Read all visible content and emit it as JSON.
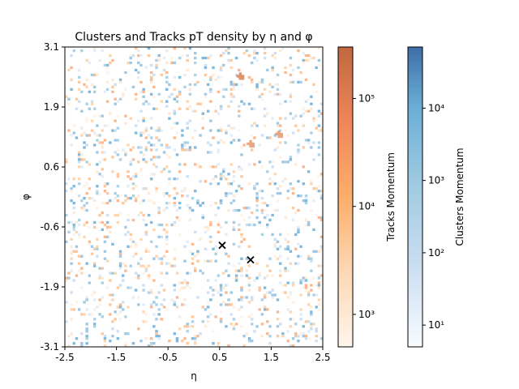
{
  "chart_data": {
    "type": "heatmap",
    "title": "Clusters and Tracks pT density by η and φ",
    "xlabel": "η",
    "ylabel": "φ",
    "xlim": [
      -2.5,
      2.5
    ],
    "ylim": [
      -3.1,
      3.1
    ],
    "xticks": [
      "-2.5",
      "-1.5",
      "-0.5",
      "0.5",
      "1.5",
      "2.5"
    ],
    "yticks": [
      "-3.1",
      "-1.9",
      "-0.6",
      "0.6",
      "1.9",
      "3.1"
    ],
    "grid": false,
    "colorbars": [
      {
        "name": "Tracks Momentum",
        "colormap": "Oranges",
        "scale": "log",
        "range": [
          500,
          300000
        ],
        "tick_labels": [
          "10³",
          "10⁴",
          "10⁵"
        ],
        "tick_values": [
          1000,
          10000,
          100000
        ]
      },
      {
        "name": "Clusters Momentum",
        "colormap": "Blues",
        "scale": "log",
        "range": [
          5,
          70000
        ],
        "tick_labels": [
          "10¹",
          "10²",
          "10³",
          "10⁴"
        ],
        "tick_values": [
          10,
          100,
          1000,
          10000
        ]
      }
    ],
    "markers": [
      {
        "symbol": "x",
        "eta": 0.55,
        "phi": -1.0
      },
      {
        "symbol": "x",
        "eta": 1.1,
        "phi": -1.3
      }
    ],
    "hotspots": [
      {
        "series": "Tracks Momentum",
        "eta": 0.9,
        "phi": 2.5,
        "value": 150000
      },
      {
        "series": "Tracks Momentum",
        "eta": 1.65,
        "phi": 1.3,
        "value": 40000
      },
      {
        "series": "Tracks Momentum",
        "eta": 1.1,
        "phi": 1.1,
        "value": 20000
      }
    ],
    "bins": {
      "eta": 100,
      "phi": 124
    },
    "colors": {
      "tracks_high": "#b3532a",
      "tracks_low": "#fff5eb",
      "clusters_high": "#08306b",
      "clusters_low": "#f7fbff",
      "marker": "#000000"
    }
  }
}
